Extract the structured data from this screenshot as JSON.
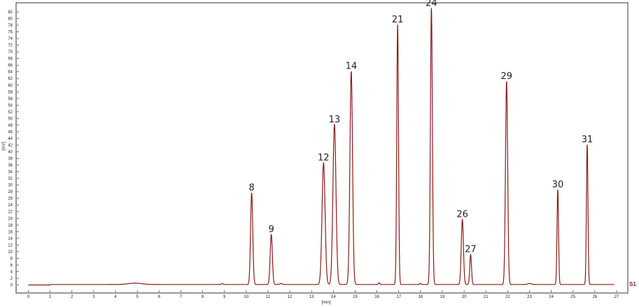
{
  "chart_data": {
    "type": "line",
    "xlabel": "[min]",
    "ylabel": "[mV]",
    "xlim": [
      0,
      27.5
    ],
    "ylim": [
      -2,
      85
    ],
    "x_ticks": [
      0,
      1,
      2,
      3,
      4,
      5,
      6,
      7,
      8,
      9,
      10,
      11,
      12,
      13,
      14,
      15,
      16,
      17,
      18,
      19,
      20,
      21,
      22,
      23,
      24,
      25,
      26,
      27
    ],
    "y_ticks": [
      0,
      2,
      4,
      6,
      8,
      10,
      12,
      14,
      16,
      18,
      20,
      22,
      24,
      26,
      28,
      30,
      32,
      34,
      36,
      38,
      40,
      42,
      44,
      46,
      48,
      50,
      52,
      54,
      56,
      58,
      60,
      62,
      64,
      66,
      68,
      70,
      72,
      74,
      76,
      78,
      80,
      82
    ],
    "grid": false,
    "colors": {
      "series": "#8b1a1a",
      "axis": "#333333"
    },
    "series": [
      {
        "name": "S1",
        "baseline": 0,
        "peaks": [
          {
            "label": "8",
            "x": 10.25,
            "y": 27.5,
            "width": 0.05
          },
          {
            "label": "9",
            "x": 11.15,
            "y": 15.0,
            "width": 0.05
          },
          {
            "label": "12",
            "x": 13.55,
            "y": 36.5,
            "width": 0.07
          },
          {
            "label": "13",
            "x": 14.05,
            "y": 48.0,
            "width": 0.07
          },
          {
            "label": "14",
            "x": 14.82,
            "y": 64.0,
            "width": 0.06
          },
          {
            "label": "21",
            "x": 16.95,
            "y": 78.0,
            "width": 0.04
          },
          {
            "label": "24",
            "x": 18.5,
            "y": 83.0,
            "width": 0.045
          },
          {
            "label": "26",
            "x": 19.92,
            "y": 19.5,
            "width": 0.05
          },
          {
            "label": "27",
            "x": 20.3,
            "y": 9.0,
            "width": 0.04
          },
          {
            "label": "29",
            "x": 21.95,
            "y": 61.0,
            "width": 0.05
          },
          {
            "label": "30",
            "x": 24.3,
            "y": 28.5,
            "width": 0.035
          },
          {
            "label": "31",
            "x": 25.65,
            "y": 42.0,
            "width": 0.035
          }
        ]
      }
    ]
  }
}
